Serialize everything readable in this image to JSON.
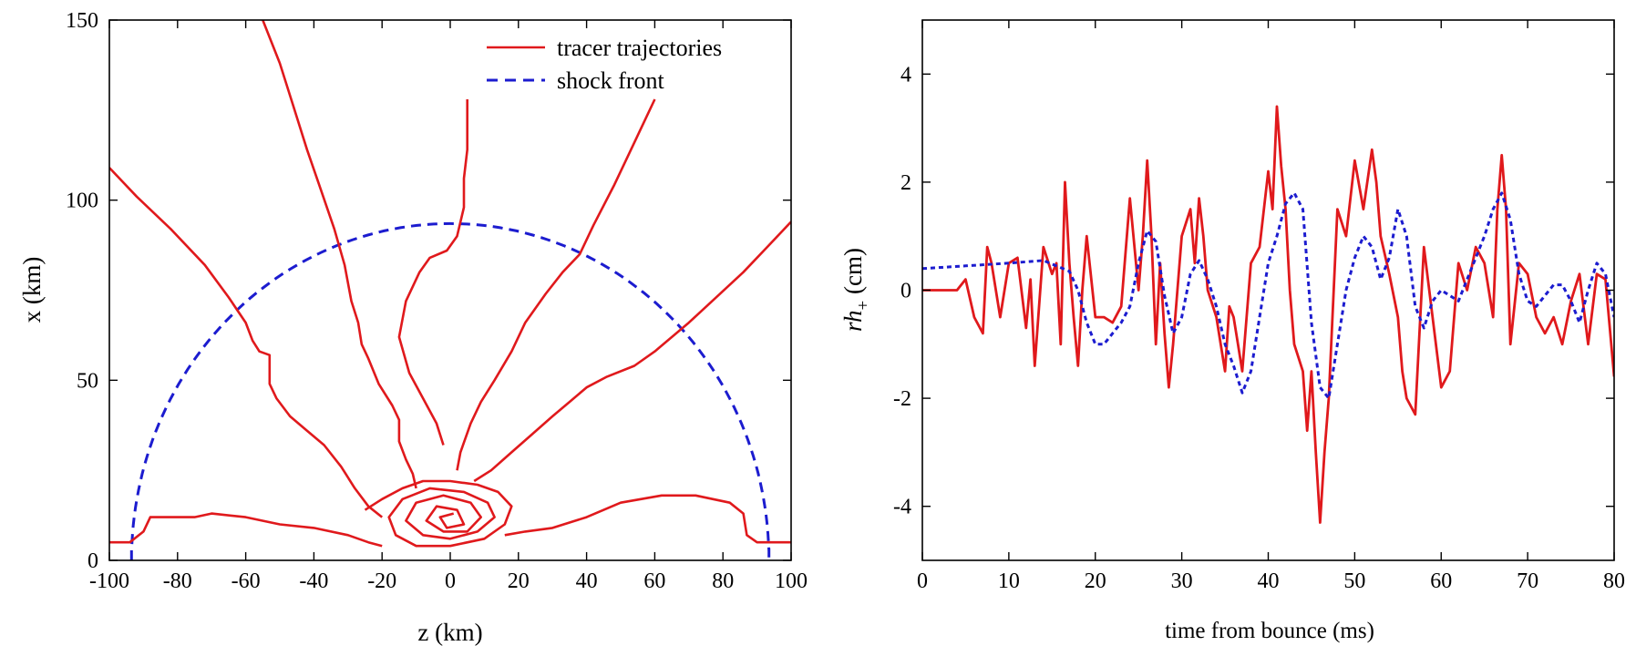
{
  "colors": {
    "tracer": "#e0191c",
    "shock": "#1c1ccf",
    "axis": "#000000"
  },
  "chart_data": [
    {
      "type": "line",
      "xlabel": "z (km)",
      "ylabel": "x (km)",
      "xlim": [
        -100,
        100
      ],
      "ylim": [
        0,
        150
      ],
      "xticks": [
        -100,
        -80,
        -60,
        -40,
        -20,
        0,
        20,
        40,
        60,
        80,
        100
      ],
      "yticks": [
        0,
        50,
        100,
        150
      ],
      "legend": {
        "position": "top-right",
        "entries": [
          {
            "label": "tracer trajectories",
            "style": "solid",
            "color": "#e0191c"
          },
          {
            "label": "shock front",
            "style": "dashed",
            "color": "#1c1ccf"
          }
        ]
      },
      "series": [
        {
          "name": "shock front",
          "style": "dashed",
          "shape": "semicircle",
          "center": [
            0,
            0
          ],
          "radius_km": 93.5,
          "ybottom": 3
        },
        {
          "name": "tracer trajectories",
          "style": "solid",
          "trajectories": [
            [
              [
                -100,
                109
              ],
              [
                -92,
                101
              ],
              [
                -82,
                92
              ],
              [
                -72,
                82
              ],
              [
                -65,
                73
              ],
              [
                -60,
                66
              ],
              [
                -58,
                61
              ],
              [
                -56,
                58
              ],
              [
                -53,
                57
              ],
              [
                -53,
                49
              ],
              [
                -51,
                45
              ],
              [
                -47,
                40
              ],
              [
                -42,
                36
              ],
              [
                -37,
                32
              ],
              [
                -32,
                26
              ],
              [
                -28,
                20
              ],
              [
                -24,
                15
              ],
              [
                -20,
                12
              ]
            ],
            [
              [
                -55,
                150
              ],
              [
                -50,
                138
              ],
              [
                -46,
                126
              ],
              [
                -42,
                114
              ],
              [
                -38,
                103
              ],
              [
                -34,
                92
              ],
              [
                -31,
                82
              ],
              [
                -29,
                72
              ],
              [
                -27,
                66
              ],
              [
                -26,
                60
              ],
              [
                -24,
                56
              ],
              [
                -21,
                49
              ],
              [
                -17,
                43
              ],
              [
                -15,
                39
              ],
              [
                -15,
                33
              ],
              [
                -13,
                28
              ],
              [
                -11,
                24
              ],
              [
                -10,
                20
              ]
            ],
            [
              [
                -2,
                32
              ],
              [
                -4,
                38
              ],
              [
                -8,
                45
              ],
              [
                -12,
                52
              ],
              [
                -15,
                62
              ],
              [
                -13,
                72
              ],
              [
                -9,
                80
              ],
              [
                -6,
                84
              ],
              [
                -1,
                86
              ],
              [
                2,
                90
              ],
              [
                4,
                98
              ],
              [
                4,
                106
              ],
              [
                5,
                114
              ],
              [
                5,
                122
              ],
              [
                5,
                128
              ]
            ],
            [
              [
                60,
                128
              ],
              [
                54,
                116
              ],
              [
                48,
                104
              ],
              [
                42,
                93
              ],
              [
                38,
                85
              ],
              [
                33,
                80
              ],
              [
                28,
                74
              ],
              [
                22,
                66
              ],
              [
                18,
                58
              ],
              [
                13,
                50
              ],
              [
                9,
                44
              ],
              [
                6,
                38
              ],
              [
                3,
                30
              ],
              [
                2,
                25
              ]
            ],
            [
              [
                100,
                94
              ],
              [
                93,
                87
              ],
              [
                86,
                80
              ],
              [
                78,
                73
              ],
              [
                70,
                66
              ],
              [
                60,
                58
              ],
              [
                54,
                54
              ],
              [
                46,
                51
              ],
              [
                40,
                48
              ],
              [
                35,
                44
              ],
              [
                30,
                40
              ],
              [
                24,
                35
              ],
              [
                18,
                30
              ],
              [
                12,
                25
              ],
              [
                7,
                22
              ]
            ],
            [
              [
                -100,
                5
              ],
              [
                -94,
                5
              ],
              [
                -90,
                8
              ],
              [
                -88,
                12
              ],
              [
                -84,
                12
              ],
              [
                -75,
                12
              ],
              [
                -70,
                13
              ],
              [
                -60,
                12
              ],
              [
                -50,
                10
              ],
              [
                -40,
                9
              ],
              [
                -30,
                7
              ],
              [
                -24,
                5
              ],
              [
                -20,
                4
              ]
            ],
            [
              [
                100,
                5
              ],
              [
                90,
                5
              ],
              [
                87,
                7
              ],
              [
                86,
                13
              ],
              [
                82,
                16
              ],
              [
                72,
                18
              ],
              [
                62,
                18
              ],
              [
                50,
                16
              ],
              [
                40,
                12
              ],
              [
                30,
                9
              ],
              [
                22,
                8
              ],
              [
                16,
                7
              ]
            ],
            [
              [
                -25,
                14
              ],
              [
                -20,
                17
              ],
              [
                -14,
                20
              ],
              [
                -8,
                22
              ],
              [
                0,
                22
              ],
              [
                8,
                21
              ],
              [
                14,
                19
              ],
              [
                18,
                15
              ],
              [
                16,
                10
              ],
              [
                10,
                6
              ],
              [
                0,
                4
              ],
              [
                -10,
                4
              ],
              [
                -16,
                7
              ],
              [
                -18,
                12
              ],
              [
                -14,
                17
              ],
              [
                -6,
                20
              ],
              [
                4,
                19
              ],
              [
                11,
                16
              ],
              [
                13,
                12
              ],
              [
                8,
                8
              ],
              [
                0,
                6
              ],
              [
                -8,
                7
              ],
              [
                -13,
                11
              ],
              [
                -10,
                16
              ],
              [
                -2,
                18
              ],
              [
                6,
                16
              ],
              [
                9,
                12
              ],
              [
                5,
                8
              ],
              [
                -2,
                8
              ],
              [
                -7,
                11
              ],
              [
                -4,
                15
              ],
              [
                2,
                14
              ],
              [
                4,
                10
              ],
              [
                -1,
                9
              ],
              [
                -3,
                12
              ],
              [
                1,
                13
              ]
            ]
          ]
        }
      ]
    },
    {
      "type": "line",
      "xlabel": "time from bounce (ms)",
      "ylabel": "rh+ (cm)",
      "ylabel_main": "rh",
      "ylabel_sub": "+",
      "ylabel_unit": "(cm)",
      "xlim": [
        0,
        80
      ],
      "ylim": [
        -5,
        5
      ],
      "xticks": [
        0,
        10,
        20,
        30,
        40,
        50,
        60,
        70,
        80
      ],
      "yticks": [
        -4,
        -2,
        0,
        2,
        4
      ],
      "series": [
        {
          "style": "solid",
          "color": "#e0191c",
          "x": [
            0,
            2,
            4,
            5,
            6,
            7,
            7.5,
            8,
            9,
            10,
            11,
            12,
            12.5,
            13,
            14,
            15,
            15.5,
            16,
            16.5,
            17,
            17.5,
            18,
            18.5,
            19,
            20,
            21,
            22,
            23,
            24,
            25,
            25.5,
            26,
            26.5,
            27,
            27.5,
            28,
            28.5,
            29,
            30,
            31,
            31.5,
            32,
            32.5,
            33,
            34,
            35,
            35.5,
            36,
            36.5,
            37,
            38,
            39,
            40,
            40.5,
            41,
            41.5,
            42,
            42.5,
            43,
            44,
            44.5,
            45,
            45.5,
            46,
            46.5,
            47,
            48,
            49,
            50,
            51,
            52,
            52.5,
            53,
            54,
            55,
            55.5,
            56,
            57,
            58,
            59,
            60,
            61,
            62,
            63,
            64,
            65,
            66,
            66.5,
            67,
            67.5,
            68,
            69,
            70,
            71,
            72,
            73,
            74,
            75,
            76,
            77,
            78,
            79,
            80
          ],
          "y": [
            0,
            0,
            0,
            0.2,
            -0.5,
            -0.8,
            0.8,
            0.5,
            -0.5,
            0.5,
            0.6,
            -0.7,
            0.2,
            -1.4,
            0.8,
            0.3,
            0.5,
            -1.0,
            2.0,
            0.5,
            -0.5,
            -1.4,
            0.0,
            1.0,
            -0.5,
            -0.5,
            -0.6,
            -0.3,
            1.7,
            0.0,
            1.0,
            2.4,
            1.0,
            -1.0,
            0.5,
            -0.8,
            -1.8,
            -1.0,
            1.0,
            1.5,
            0.5,
            1.7,
            1.0,
            0.0,
            -0.5,
            -1.5,
            -0.3,
            -0.5,
            -1.0,
            -1.5,
            0.5,
            0.8,
            2.2,
            1.5,
            3.4,
            2.3,
            1.5,
            0.0,
            -1.0,
            -1.5,
            -2.6,
            -1.5,
            -3.0,
            -4.3,
            -3.0,
            -2.0,
            1.5,
            1.0,
            2.4,
            1.5,
            2.6,
            2.0,
            1.0,
            0.3,
            -0.5,
            -1.5,
            -2.0,
            -2.3,
            0.8,
            -0.5,
            -1.8,
            -1.5,
            0.5,
            0.0,
            0.8,
            0.5,
            -0.5,
            1.5,
            2.5,
            1.5,
            -1.0,
            0.5,
            0.3,
            -0.5,
            -0.8,
            -0.5,
            -1.0,
            -0.2,
            0.3,
            -1.0,
            0.3,
            0.2,
            -1.6
          ]
        },
        {
          "style": "dotted",
          "color": "#1c1ccf",
          "x": [
            0,
            5,
            10,
            14,
            17,
            18,
            19,
            20,
            21,
            22,
            23,
            24,
            25,
            26,
            27,
            28,
            29,
            30,
            31,
            32,
            33,
            34,
            35,
            36,
            37,
            38,
            39,
            40,
            41,
            42,
            43,
            44,
            45,
            46,
            47,
            48,
            49,
            50,
            51,
            52,
            53,
            54,
            55,
            56,
            57,
            58,
            59,
            60,
            61,
            62,
            63,
            64,
            65,
            66,
            67,
            68,
            69,
            70,
            71,
            72,
            73,
            74,
            75,
            76,
            77,
            78,
            79,
            80
          ],
          "y": [
            0.4,
            0.45,
            0.5,
            0.55,
            0.35,
            0.0,
            -0.6,
            -1.0,
            -1.0,
            -0.8,
            -0.6,
            -0.3,
            0.5,
            1.1,
            0.9,
            -0.1,
            -0.8,
            -0.5,
            0.3,
            0.55,
            0.2,
            -0.3,
            -1.0,
            -1.4,
            -1.9,
            -1.5,
            -0.5,
            0.5,
            1.0,
            1.6,
            1.8,
            1.5,
            -0.6,
            -1.8,
            -2.0,
            -1.0,
            0.0,
            0.6,
            1.0,
            0.8,
            0.2,
            0.6,
            1.5,
            1.0,
            -0.3,
            -0.7,
            -0.2,
            0.0,
            -0.1,
            -0.2,
            0.2,
            0.6,
            1.0,
            1.5,
            1.8,
            1.3,
            0.3,
            -0.2,
            -0.3,
            -0.1,
            0.1,
            0.1,
            -0.2,
            -0.6,
            0.0,
            0.5,
            0.3,
            -0.5
          ]
        }
      ]
    }
  ]
}
